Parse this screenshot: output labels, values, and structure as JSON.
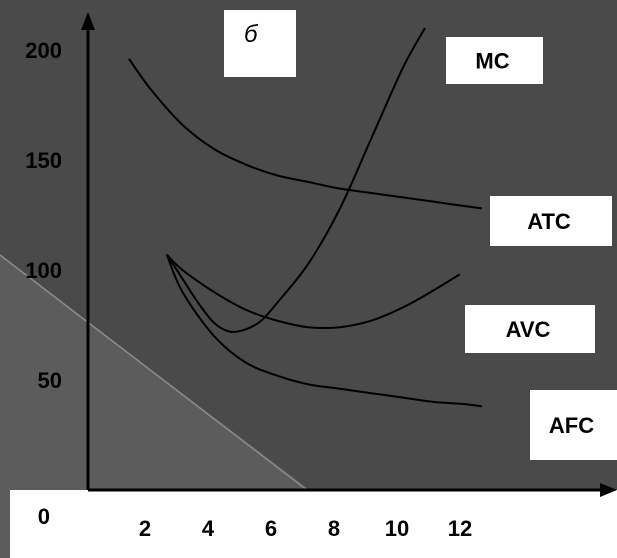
{
  "panel_label": "б",
  "colors": {
    "background": "#4a4a4a",
    "background_light": "#5c5c5c",
    "curve": "#000000",
    "label_box": "#ffffff"
  },
  "chart_data": {
    "type": "line",
    "title": "",
    "xlabel": "",
    "ylabel": "",
    "xlim": [
      0,
      15
    ],
    "ylim": [
      0,
      215
    ],
    "x_ticks": [
      "2",
      "4",
      "6",
      "8",
      "10",
      "12"
    ],
    "y_ticks": [
      "0",
      "50",
      "100",
      "150",
      "200"
    ],
    "series": [
      {
        "name": "MC",
        "x": [
          2.5,
          3.0,
          3.5,
          4.0,
          4.5,
          5.0,
          5.5,
          6.0,
          7.0,
          8.0,
          9.0,
          10.0,
          10.7
        ],
        "y": [
          107,
          96,
          85,
          76,
          72,
          73,
          77,
          85,
          103,
          128,
          160,
          192,
          210
        ]
      },
      {
        "name": "ATC",
        "x": [
          1.3,
          2,
          3,
          4,
          5,
          6,
          7,
          8,
          9,
          10,
          11,
          12,
          12.5
        ],
        "y": [
          196,
          182,
          166,
          155,
          148,
          143,
          140,
          137,
          135,
          133,
          131,
          129,
          128
        ]
      },
      {
        "name": "AVC",
        "x": [
          2.5,
          3,
          4,
          5,
          6,
          7,
          8,
          9,
          10,
          11,
          11.8
        ],
        "y": [
          107,
          100,
          90,
          82,
          77,
          74,
          74,
          77,
          83,
          91,
          98
        ]
      },
      {
        "name": "AFC",
        "x": [
          2.5,
          3,
          4,
          5,
          6,
          7,
          8,
          9,
          10,
          11,
          12,
          12.5
        ],
        "y": [
          107,
          90,
          70,
          58,
          52,
          48,
          46,
          44,
          42,
          40,
          39,
          38
        ]
      }
    ]
  }
}
